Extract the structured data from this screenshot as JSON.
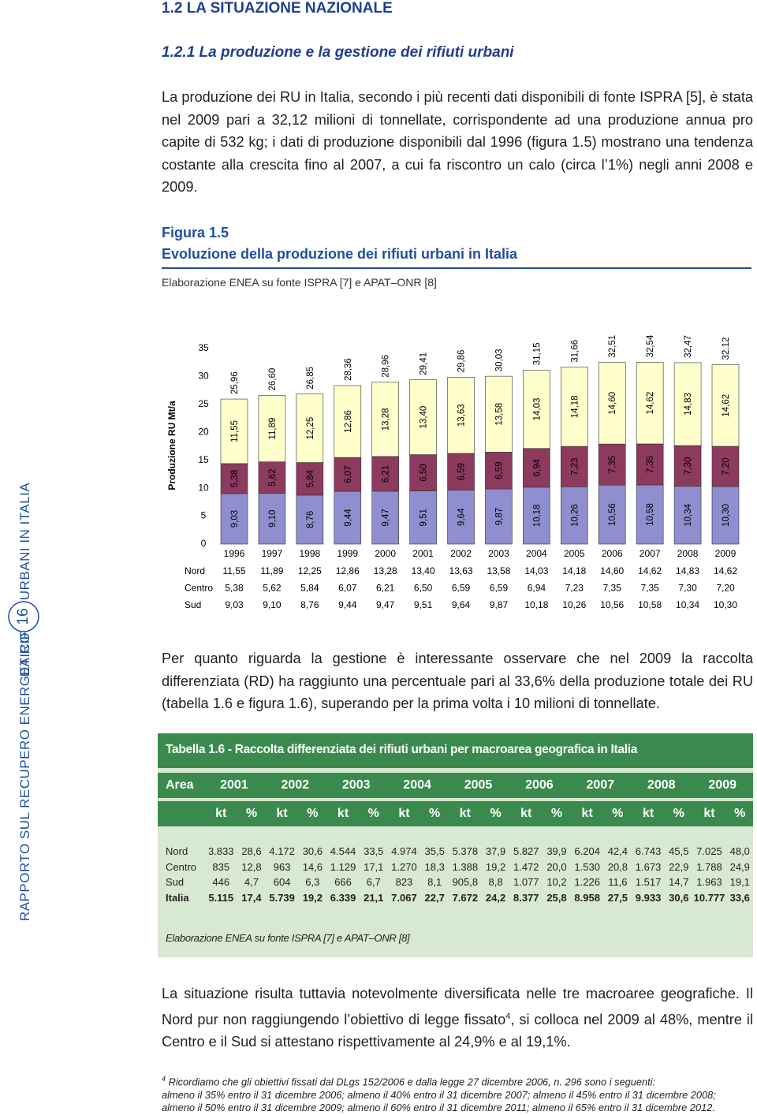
{
  "header": {
    "title": "1.2 LA SITUAZIONE NAZIONALE",
    "subtitle": "1.2.1 La produzione e la gestione dei rifiuti urbani"
  },
  "side": {
    "text1": "RAPPORTO SUL RECUPERO ENERGETICO",
    "text2": "DA RIFIUTI URBANI IN ITALIA",
    "page": "16"
  },
  "paragraph1": "La produzione dei RU in Italia, secondo i più recenti dati disponibili di fonte ISPRA [5], è stata nel 2009 pari a 32,12 milioni di tonnellate, corrispondente ad una produzione annua pro capite di 532 kg; i dati di produzione disponibili dal 1996 (figura 1.5) mostrano una tendenza costante alla crescita fino al 2007, a cui fa riscontro un calo (circa l’1%) negli anni 2008 e 2009.",
  "figure": {
    "label": "Figura 1.5",
    "title": "Evoluzione della produzione dei rifiuti urbani in Italia",
    "source": "Elaborazione ENEA su fonte ISPRA [7] e APAT–ONR [8]"
  },
  "chart_data": {
    "type": "stacked_bar",
    "ylabel": "Produzione RU Mt/a",
    "categories": [
      "1996",
      "1997",
      "1998",
      "1999",
      "2000",
      "2001",
      "2002",
      "2003",
      "2004",
      "2005",
      "2006",
      "2007",
      "2008",
      "2009"
    ],
    "ylim": [
      0,
      35
    ],
    "yticks": [
      0,
      5,
      10,
      15,
      20,
      25,
      30,
      35
    ],
    "series": [
      {
        "name": "Sud",
        "color": "#8f8fcf",
        "values": [
          9.03,
          9.1,
          8.76,
          9.44,
          9.47,
          9.51,
          9.64,
          9.87,
          10.18,
          10.26,
          10.56,
          10.58,
          10.34,
          10.3
        ],
        "value_labels": [
          "9,03",
          "9,10",
          "8,76",
          "9,44",
          "9,47",
          "9,51",
          "9,64",
          "9,87",
          "10,18",
          "10,26",
          "10,56",
          "10,58",
          "10,34",
          "10,30"
        ]
      },
      {
        "name": "Centro",
        "color": "#8c3a5e",
        "values": [
          5.38,
          5.62,
          5.84,
          6.07,
          6.21,
          6.5,
          6.59,
          6.59,
          6.94,
          7.23,
          7.35,
          7.35,
          7.3,
          7.2
        ],
        "value_labels": [
          "5,38",
          "5,62",
          "5,84",
          "6,07",
          "6,21",
          "6,50",
          "6,59",
          "6,59",
          "6,94",
          "7,23",
          "7,35",
          "7,35",
          "7,30",
          "7,20"
        ]
      },
      {
        "name": "Nord",
        "color": "#ffffcc",
        "values": [
          11.55,
          11.89,
          12.25,
          12.86,
          13.28,
          13.4,
          13.63,
          13.58,
          14.03,
          14.18,
          14.6,
          14.62,
          14.83,
          14.62
        ],
        "value_labels": [
          "11,55",
          "11,89",
          "12,25",
          "12,86",
          "13,28",
          "13,40",
          "13,63",
          "13,58",
          "14,03",
          "14,18",
          "14,60",
          "14,62",
          "14,83",
          "14,62"
        ]
      }
    ],
    "totals": {
      "values": [
        25.96,
        26.6,
        26.85,
        28.36,
        28.96,
        29.41,
        29.86,
        30.03,
        31.15,
        31.66,
        32.51,
        32.54,
        32.47,
        32.12
      ],
      "value_labels": [
        "25,96",
        "26,60",
        "26,85",
        "28,36",
        "28,96",
        "29,41",
        "29,86",
        "30,03",
        "31,15",
        "31,66",
        "32,51",
        "32,54",
        "32,47",
        "32,12"
      ]
    }
  },
  "paragraph2": "Per quanto riguarda la gestione è interessante osservare che nel 2009 la raccolta differenziata (RD) ha raggiunto una percentuale pari al 33,6% della produzione totale dei RU (tabella 1.6 e figura 1.6), superando per la prima volta i 10 milioni di tonnellate.",
  "table": {
    "title": "Tabella 1.6 - Raccolta differenziata dei rifiuti urbani per macroarea geografica in Italia",
    "area_label": "Area",
    "years": [
      "2001",
      "2002",
      "2003",
      "2004",
      "2005",
      "2006",
      "2007",
      "2008",
      "2009"
    ],
    "units": [
      "kt",
      "%"
    ],
    "rows": [
      [
        "Nord",
        "3.833",
        "28,6",
        "4.172",
        "30,6",
        "4.544",
        "33,5",
        "4.974",
        "35,5",
        "5.378",
        "37,9",
        "5.827",
        "39,9",
        "6.204",
        "42,4",
        "6.743",
        "45,5",
        "7.025",
        "48,0"
      ],
      [
        "Centro",
        "835",
        "12,8",
        "963",
        "14,6",
        "1.129",
        "17,1",
        "1.270",
        "18,3",
        "1.388",
        "19,2",
        "1.472",
        "20,0",
        "1.530",
        "20,8",
        "1.673",
        "22,9",
        "1.788",
        "24,9"
      ],
      [
        "Sud",
        "446",
        "4,7",
        "604",
        "6,3",
        "666",
        "6,7",
        "823",
        "8,1",
        "905,8",
        "8,8",
        "1.077",
        "10,2",
        "1.226",
        "11,6",
        "1.517",
        "14,7",
        "1.963",
        "19,1"
      ],
      [
        "Italia",
        "5.115",
        "17,4",
        "5.739",
        "19,2",
        "6.339",
        "21,1",
        "7.067",
        "22,7",
        "7.672",
        "24,2",
        "8.377",
        "25,8",
        "8.958",
        "27,5",
        "9.933",
        "30,6",
        "10.777",
        "33,6"
      ]
    ],
    "source": "Elaborazione ENEA su fonte ISPRA [7] e APAT–ONR [8]"
  },
  "paragraph3": {
    "text_before": "La situazione risulta tuttavia notevolmente diversificata nelle tre macroaree geografiche. Il Nord pur non raggiungendo l’obiettivo di legge fissato",
    "note_ref": "4",
    "text_after": ", si colloca nel 2009 al 48%, mentre il Centro e il Sud si attestano rispettivamente al 24,9% e al 19,1%."
  },
  "footnote": {
    "marker": "4",
    "lines": [
      "Ricordiamo che gli obiettivi fissati dal DLgs 152/2006 e dalla legge 27 dicembre 2006, n. 296 sono i seguenti:",
      "almeno il 35% entro il 31 dicembre 2006; almeno il 40% entro il 31 dicembre 2007; almeno il 45% entro il 31 dicembre 2008;",
      "almeno il 50% entro il 31 dicembre 2009; almeno il 60% entro il 31 dicembre 2011; almeno il 65% entro il 31 dicembre 2012."
    ]
  }
}
